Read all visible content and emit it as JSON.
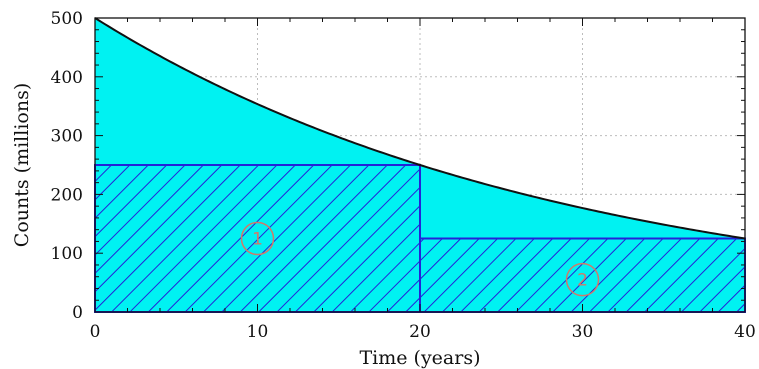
{
  "chart_data": {
    "type": "area",
    "title": "",
    "xlabel": "Time (years)",
    "ylabel": "Counts (millions)",
    "xlim": [
      0,
      40
    ],
    "ylim": [
      0,
      500
    ],
    "x_ticks": [
      0,
      10,
      20,
      30,
      40
    ],
    "y_ticks": [
      0,
      100,
      200,
      300,
      400,
      500
    ],
    "grid": true,
    "curve": {
      "function": "exponential decay",
      "initial_value": 500,
      "half_life": 20,
      "points": [
        {
          "x": 0,
          "y": 500
        },
        {
          "x": 10,
          "y": 353.6
        },
        {
          "x": 20,
          "y": 250
        },
        {
          "x": 30,
          "y": 176.8
        },
        {
          "x": 40,
          "y": 125
        }
      ]
    },
    "regions": [
      {
        "label": "1",
        "x_start": 0,
        "x_end": 20,
        "height": 250,
        "label_at": {
          "x": 10,
          "y": 125
        }
      },
      {
        "label": "2",
        "x_start": 20,
        "x_end": 40,
        "height": 125,
        "label_at": {
          "x": 30,
          "y": 55
        }
      }
    ],
    "colors": {
      "area_fill": "#00f2f2",
      "hatch": "#2323d8",
      "curve": "#111111",
      "grid": "#bdbdbd",
      "region_label": "#d07a6a"
    }
  }
}
